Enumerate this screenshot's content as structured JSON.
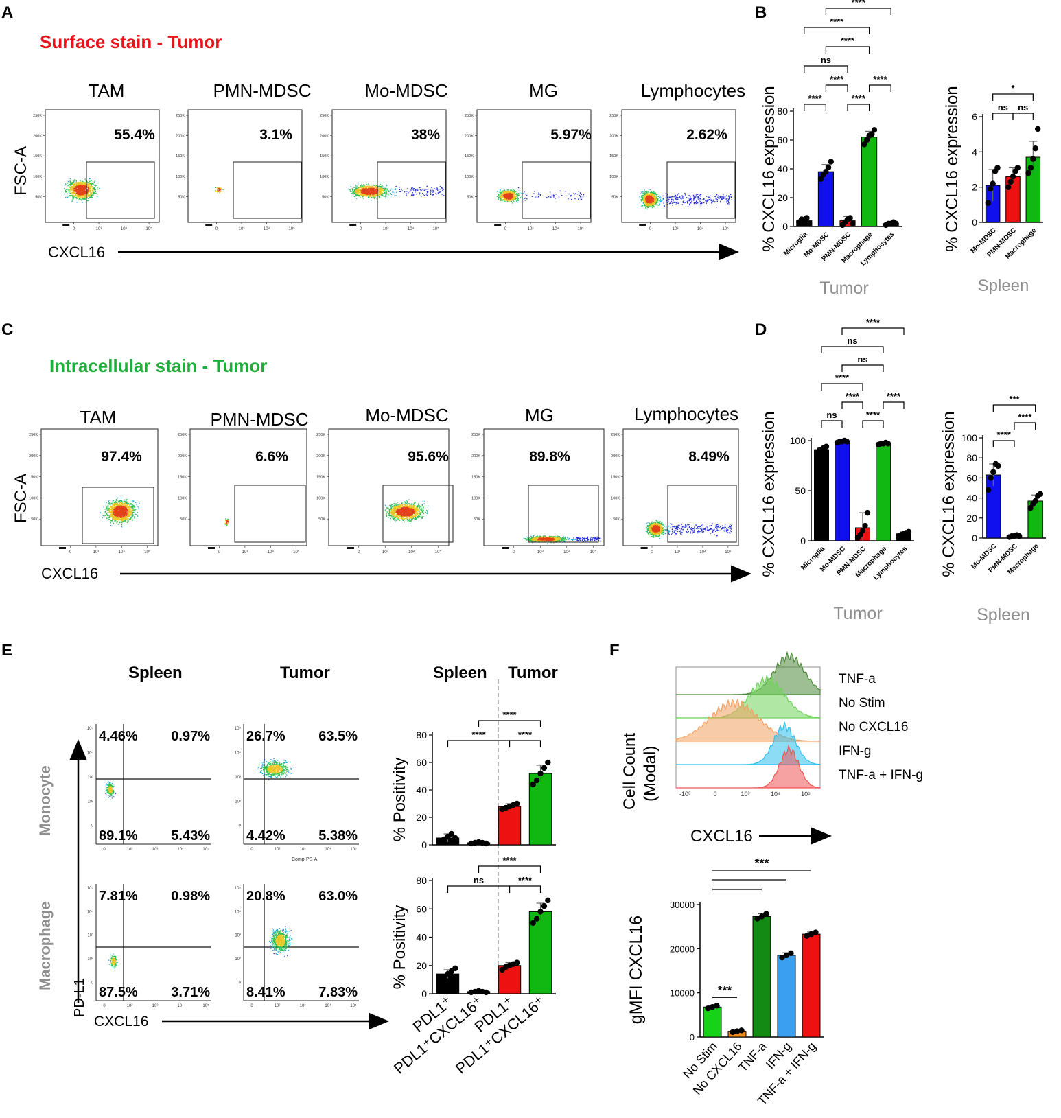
{
  "panel_labels": {
    "A": "A",
    "B": "B",
    "C": "C",
    "D": "D",
    "E": "E",
    "F": "F"
  },
  "panel_a": {
    "title": "Surface stain - Tumor",
    "title_color": "#e8131b",
    "y_label": "FSC-A",
    "x_label": "CXCL16",
    "y_ticks": [
      "250K",
      "200K",
      "150K",
      "100K",
      "50K"
    ],
    "x_ticks": [
      "0",
      "10³",
      "10⁴",
      "10⁵"
    ],
    "plots": [
      {
        "name": "TAM",
        "pct": "55.4%"
      },
      {
        "name": "PMN-MDSC",
        "pct": "3.1%"
      },
      {
        "name": "Mo-MDSC",
        "pct": "38%"
      },
      {
        "name": "MG",
        "pct": "5.97%"
      },
      {
        "name": "Lymphocytes",
        "pct": "2.62%"
      }
    ]
  },
  "panel_c": {
    "title": "Intracellular stain - Tumor",
    "title_color": "#1fae3b",
    "y_label": "FSC-A",
    "x_label": "CXCL16",
    "plots": [
      {
        "name": "TAM",
        "pct": "97.4%"
      },
      {
        "name": "PMN-MDSC",
        "pct": "6.6%"
      },
      {
        "name": "Mo-MDSC",
        "pct": "95.6%"
      },
      {
        "name": "MG",
        "pct": "89.8%"
      },
      {
        "name": "Lymphocytes",
        "pct": "8.49%"
      }
    ]
  },
  "panel_e": {
    "col_headers": [
      "Spleen",
      "Tumor"
    ],
    "row_labels": [
      "Monocyte",
      "Macrophage"
    ],
    "y_label": "PD-L1",
    "x_label": "CXCL16",
    "x_axis_title": "Comp-PE-A",
    "y_ticks": [
      "10⁵",
      "10⁴",
      "10³",
      "10²",
      "0"
    ],
    "x_ticks": [
      "0",
      "10²",
      "10³",
      "10⁴",
      "10⁵"
    ],
    "quadrants": [
      {
        "row": 0,
        "col": 0,
        "q": [
          "4.46%",
          "0.97%",
          "89.1%",
          "5.43%"
        ]
      },
      {
        "row": 0,
        "col": 1,
        "q": [
          "26.7%",
          "63.5%",
          "4.42%",
          "5.38%"
        ]
      },
      {
        "row": 1,
        "col": 0,
        "q": [
          "7.81%",
          "0.98%",
          "87.5%",
          "3.71%"
        ]
      },
      {
        "row": 1,
        "col": 1,
        "q": [
          "20.8%",
          "63.0%",
          "8.41%",
          "7.83%"
        ]
      }
    ],
    "bar_header": {
      "left": "Spleen",
      "right": "Tumor"
    }
  },
  "panel_f": {
    "y_label_line1": "Cell Count",
    "y_label_line2": "(Modal)",
    "x_label": "CXCL16",
    "x_ticks": [
      "-10³",
      "0",
      "10³",
      "10⁴",
      "10⁵"
    ],
    "legend": [
      "TNF-a",
      "No Stim",
      "No CXCL16",
      "IFN-g",
      "TNF-a + IFN-g"
    ],
    "histogram_colors": [
      "#4e8a3a",
      "#6fd35a",
      "#f2a061",
      "#2fc0ec",
      "#ef5656"
    ]
  },
  "colors": {
    "black": "#000000",
    "blue": "#1010ee",
    "red": "#ee1111",
    "green": "#11b811",
    "dark_green": "#138a13",
    "orange": "#f08a18",
    "light_blue": "#3a9ff0",
    "bright_green": "#17d317",
    "gray_label": "#8e8e8e"
  },
  "chart_data": [
    {
      "id": "B-tumor",
      "type": "bar",
      "title": "",
      "ylabel": "% CXCL16 expression",
      "xlabel": "Tumor",
      "ylim": [
        0,
        80
      ],
      "yticks": [
        0,
        20,
        40,
        60,
        80
      ],
      "categories": [
        "Microglia",
        "Mo-MDSC",
        "PMN-MDSC",
        "Macrophage",
        "Lymphocytes"
      ],
      "values": [
        4,
        38,
        4,
        62,
        2
      ],
      "errors": [
        2,
        5,
        3,
        4,
        1
      ],
      "points": [
        [
          3,
          5,
          4,
          6,
          2
        ],
        [
          33,
          36,
          38,
          41,
          45
        ],
        [
          1,
          3,
          5,
          6,
          2
        ],
        [
          57,
          60,
          63,
          64,
          67
        ],
        [
          1,
          2,
          2,
          3,
          2
        ]
      ],
      "colors": [
        "black",
        "blue",
        "red",
        "green",
        "black"
      ],
      "significance": [
        {
          "a": 1,
          "b": 4,
          "label": "****",
          "level": 6
        },
        {
          "a": 0,
          "b": 3,
          "label": "****",
          "level": 5
        },
        {
          "a": 1,
          "b": 3,
          "label": "****",
          "level": 4
        },
        {
          "a": 0,
          "b": 2,
          "label": "ns",
          "level": 3
        },
        {
          "a": 1,
          "b": 2,
          "label": "****",
          "level": 2
        },
        {
          "a": 3,
          "b": 4,
          "label": "****",
          "level": 2
        },
        {
          "a": 0,
          "b": 1,
          "label": "****",
          "level": 1
        },
        {
          "a": 2,
          "b": 3,
          "label": "****",
          "level": 1
        }
      ]
    },
    {
      "id": "B-spleen",
      "type": "bar",
      "ylabel": "% CXCL16 expression",
      "xlabel": "Spleen",
      "ylim": [
        0,
        6
      ],
      "yticks": [
        0,
        2,
        4,
        6
      ],
      "categories": [
        "Mo-MDSC",
        "PMN-MDSC",
        "Macrophage"
      ],
      "values": [
        2.1,
        2.6,
        3.7
      ],
      "errors": [
        0.9,
        0.5,
        0.9
      ],
      "points": [
        [
          1.1,
          1.9,
          2.2,
          2.9,
          3.1
        ],
        [
          2.0,
          2.3,
          2.6,
          2.9,
          3.1
        ],
        [
          2.8,
          3.1,
          3.6,
          4.2,
          5.3
        ]
      ],
      "colors": [
        "blue",
        "red",
        "green"
      ],
      "significance": [
        {
          "a": 0,
          "b": 2,
          "label": "*",
          "level": 2
        },
        {
          "a": 0,
          "b": 1,
          "label": "ns",
          "level": 1
        },
        {
          "a": 1,
          "b": 2,
          "label": "ns",
          "level": 1
        }
      ]
    },
    {
      "id": "D-tumor",
      "type": "bar",
      "ylabel": "% CXCL16 expression",
      "xlabel": "Tumor",
      "ylim": [
        0,
        100
      ],
      "yticks": [
        0,
        50,
        100
      ],
      "categories": [
        "Microglia",
        "Mo-MDSC",
        "PMN-MDSC",
        "Macrophage",
        "Lymphocytes"
      ],
      "values": [
        91,
        99,
        13,
        97,
        7
      ],
      "errors": [
        2,
        1,
        15,
        1,
        2
      ],
      "points": [
        [
          88,
          90,
          91,
          93,
          94
        ],
        [
          98,
          99,
          99,
          100,
          99
        ],
        [
          3,
          6,
          10,
          15,
          28
        ],
        [
          96,
          97,
          97,
          98,
          97
        ],
        [
          5,
          6,
          7,
          8,
          9
        ]
      ],
      "colors": [
        "black",
        "blue",
        "red",
        "green",
        "black"
      ],
      "significance": [
        {
          "a": 1,
          "b": 4,
          "label": "****",
          "level": 6
        },
        {
          "a": 0,
          "b": 3,
          "label": "ns",
          "level": 5
        },
        {
          "a": 1,
          "b": 3,
          "label": "ns",
          "level": 4
        },
        {
          "a": 0,
          "b": 2,
          "label": "****",
          "level": 3
        },
        {
          "a": 1,
          "b": 2,
          "label": "****",
          "level": 2
        },
        {
          "a": 3,
          "b": 4,
          "label": "****",
          "level": 2
        },
        {
          "a": 0,
          "b": 1,
          "label": "ns",
          "level": 1
        },
        {
          "a": 2,
          "b": 3,
          "label": "****",
          "level": 1
        }
      ]
    },
    {
      "id": "D-spleen",
      "type": "bar",
      "ylabel": "% CXCL16 expression",
      "xlabel": "Spleen",
      "ylim": [
        0,
        100
      ],
      "yticks": [
        0,
        20,
        40,
        60,
        80,
        100
      ],
      "categories": [
        "Mo-MDSC",
        "PMN-MDSC",
        "Macrophage"
      ],
      "values": [
        63,
        2,
        37
      ],
      "errors": [
        11,
        1,
        6
      ],
      "points": [
        [
          48,
          60,
          66,
          74,
          72
        ],
        [
          1,
          2,
          2,
          3,
          2
        ],
        [
          30,
          34,
          37,
          42,
          44
        ]
      ],
      "colors": [
        "blue",
        "red",
        "green"
      ],
      "significance": [
        {
          "a": 0,
          "b": 2,
          "label": "***",
          "level": 3
        },
        {
          "a": 1,
          "b": 2,
          "label": "****",
          "level": 2
        },
        {
          "a": 0,
          "b": 1,
          "label": "****",
          "level": 1
        }
      ]
    },
    {
      "id": "E-monocyte",
      "type": "bar",
      "ylabel": "% Positivity",
      "ylim": [
        0,
        80
      ],
      "yticks": [
        0,
        20,
        40,
        60,
        80
      ],
      "categories": [
        "PDL1⁺",
        "PDL1⁺CXCL16⁺",
        "PDL1⁺",
        "PDL1⁺CXCL16⁺"
      ],
      "groups": [
        "Spleen",
        "Spleen",
        "Tumor",
        "Tumor"
      ],
      "values": [
        5,
        1.5,
        28,
        52
      ],
      "errors": [
        3,
        0.5,
        2,
        6
      ],
      "points": [
        [
          2,
          4,
          6,
          8,
          5
        ],
        [
          1,
          1.5,
          2,
          1.5,
          1
        ],
        [
          26,
          27,
          28,
          29,
          30
        ],
        [
          44,
          47,
          52,
          56,
          60
        ]
      ],
      "colors": [
        "black",
        "black",
        "red",
        "green"
      ],
      "significance": [
        {
          "a": 1,
          "b": 3,
          "label": "****",
          "level": 2
        },
        {
          "a": 0,
          "b": 2,
          "label": "****",
          "level": 1
        },
        {
          "a": 2,
          "b": 3,
          "label": "****",
          "level": 1
        }
      ]
    },
    {
      "id": "E-macrophage",
      "type": "bar",
      "ylabel": "% Positivity",
      "ylim": [
        0,
        80
      ],
      "yticks": [
        0,
        20,
        40,
        60,
        80
      ],
      "categories": [
        "PDL1⁺",
        "PDL1⁺CXCL16⁺",
        "PDL1⁺",
        "PDL1⁺CXCL16⁺"
      ],
      "groups": [
        "Spleen",
        "Spleen",
        "Tumor",
        "Tumor"
      ],
      "values": [
        14,
        1.5,
        20,
        58
      ],
      "errors": [
        3,
        0.5,
        2,
        6
      ],
      "points": [
        [
          10,
          12,
          14,
          16,
          18
        ],
        [
          1,
          1.5,
          2,
          1.5,
          1
        ],
        [
          17,
          19,
          20,
          21,
          22
        ],
        [
          50,
          53,
          58,
          62,
          66
        ]
      ],
      "colors": [
        "black",
        "black",
        "red",
        "green"
      ],
      "significance": [
        {
          "a": 1,
          "b": 3,
          "label": "****",
          "level": 2
        },
        {
          "a": 0,
          "b": 2,
          "label": "ns",
          "level": 1
        },
        {
          "a": 2,
          "b": 3,
          "label": "****",
          "level": 1
        }
      ]
    },
    {
      "id": "F-gmfi",
      "type": "bar",
      "ylabel": "gMFI CXCL16",
      "ylim": [
        0,
        30000
      ],
      "yticks": [
        0,
        10000,
        20000,
        30000
      ],
      "categories": [
        "No Stim",
        "No CXCL16",
        "TNF-a",
        "IFN-g",
        "TNF-a + IFN-g"
      ],
      "values": [
        6800,
        1300,
        27300,
        18500,
        23300
      ],
      "errors": [
        300,
        200,
        600,
        600,
        500
      ],
      "points": [
        [
          6500,
          6800,
          7100
        ],
        [
          1100,
          1300,
          1500
        ],
        [
          26800,
          27300,
          27900
        ],
        [
          18000,
          18500,
          19000
        ],
        [
          22900,
          23300,
          23700
        ]
      ],
      "colors": [
        "bright_green",
        "orange",
        "dark_green",
        "light_blue",
        "red"
      ],
      "significance": [
        {
          "a": 0,
          "b": 1,
          "label": "***",
          "level": 0,
          "below": true
        },
        {
          "a": 0,
          "b": 4,
          "label": "***",
          "level": 4
        },
        {
          "a": 0,
          "b": 3,
          "label": "",
          "level": 3
        },
        {
          "a": 0,
          "b": 2,
          "label": "",
          "level": 2
        }
      ]
    }
  ]
}
